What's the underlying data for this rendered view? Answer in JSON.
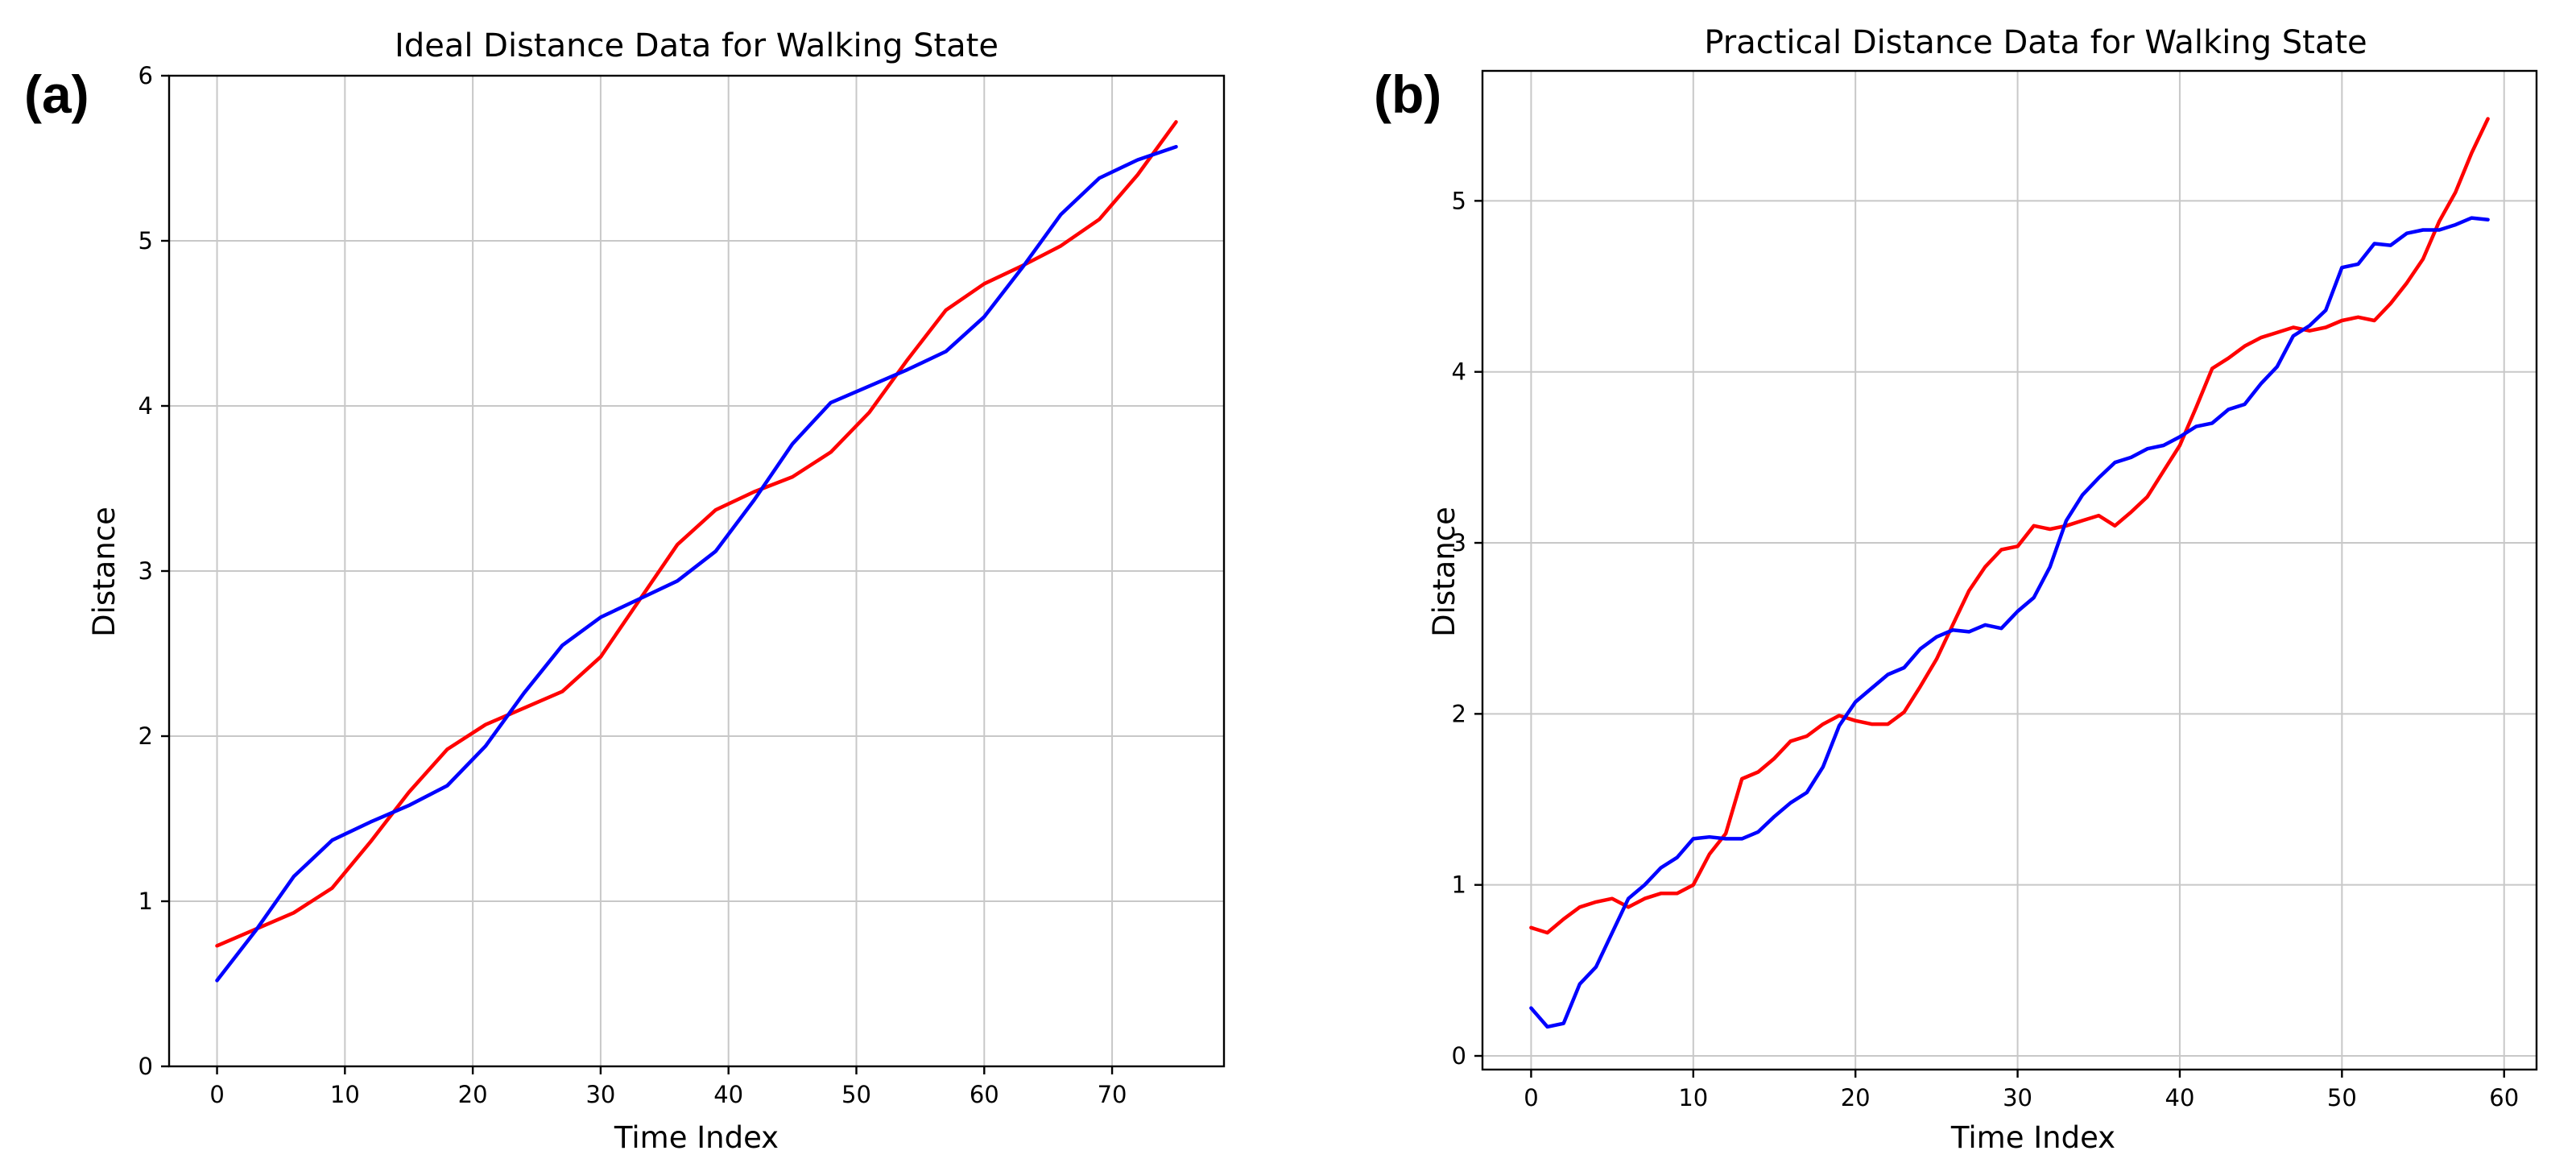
{
  "figure": {
    "panels": [
      "(a)",
      "(b)"
    ]
  },
  "chart_data": [
    {
      "type": "line",
      "panel_label": "(a)",
      "title": "Ideal Distance Data for Walking State",
      "xlabel": "Time Index",
      "ylabel": "Distance",
      "xlim": [
        -3.75,
        78.75
      ],
      "ylim": [
        0,
        6
      ],
      "xticks": [
        0,
        10,
        20,
        30,
        40,
        50,
        60,
        70
      ],
      "yticks": [
        0,
        1,
        2,
        3,
        4,
        5,
        6
      ],
      "grid": true,
      "series": [
        {
          "name": "red",
          "color": "#ff0000",
          "x": [
            0,
            3,
            6,
            9,
            12,
            15,
            18,
            21,
            24,
            27,
            30,
            33,
            36,
            39,
            42,
            45,
            48,
            51,
            54,
            57,
            60,
            63,
            66,
            69,
            72,
            75
          ],
          "values": [
            0.73,
            0.83,
            0.93,
            1.08,
            1.36,
            1.66,
            1.92,
            2.07,
            2.17,
            2.27,
            2.48,
            2.82,
            3.16,
            3.37,
            3.48,
            3.57,
            3.72,
            3.96,
            4.28,
            4.58,
            4.74,
            4.85,
            4.97,
            5.13,
            5.4,
            5.72
          ]
        },
        {
          "name": "blue",
          "color": "#0000ff",
          "x": [
            0,
            3,
            6,
            9,
            12,
            15,
            18,
            21,
            24,
            27,
            30,
            33,
            36,
            39,
            42,
            45,
            48,
            51,
            54,
            57,
            60,
            63,
            66,
            69,
            72,
            75
          ],
          "values": [
            0.52,
            0.82,
            1.15,
            1.37,
            1.48,
            1.58,
            1.7,
            1.94,
            2.26,
            2.55,
            2.72,
            2.83,
            2.94,
            3.12,
            3.43,
            3.77,
            4.02,
            4.12,
            4.22,
            4.33,
            4.54,
            4.84,
            5.16,
            5.38,
            5.49,
            5.57
          ]
        }
      ]
    },
    {
      "type": "line",
      "panel_label": "(b)",
      "title": "Practical Distance Data for Walking State",
      "xlabel": "Time Index",
      "ylabel": "Distance",
      "xlim": [
        -3.0,
        62.0
      ],
      "ylim": [
        -0.08,
        5.76
      ],
      "xticks": [
        0,
        10,
        20,
        30,
        40,
        50,
        60
      ],
      "yticks": [
        0,
        1,
        2,
        3,
        4,
        5
      ],
      "grid": true,
      "series": [
        {
          "name": "red",
          "color": "#ff0000",
          "x": [
            0,
            1,
            2,
            3,
            4,
            5,
            6,
            7,
            8,
            9,
            10,
            11,
            12,
            13,
            14,
            15,
            16,
            17,
            18,
            19,
            20,
            21,
            22,
            23,
            24,
            25,
            26,
            27,
            28,
            29,
            30,
            31,
            32,
            33,
            34,
            35,
            36,
            37,
            38,
            39,
            40,
            41,
            42,
            43,
            44,
            45,
            46,
            47,
            48,
            49,
            50,
            51,
            52,
            53,
            54,
            55,
            56,
            57,
            58,
            59
          ],
          "values": [
            0.75,
            0.72,
            0.8,
            0.87,
            0.9,
            0.92,
            0.87,
            0.92,
            0.95,
            0.95,
            1.0,
            1.18,
            1.3,
            1.62,
            1.66,
            1.74,
            1.84,
            1.87,
            1.94,
            1.99,
            1.96,
            1.94,
            1.94,
            2.01,
            2.16,
            2.32,
            2.52,
            2.72,
            2.86,
            2.96,
            2.98,
            3.1,
            3.08,
            3.1,
            3.13,
            3.16,
            3.1,
            3.18,
            3.27,
            3.42,
            3.57,
            3.79,
            4.02,
            4.08,
            4.15,
            4.2,
            4.23,
            4.26,
            4.24,
            4.26,
            4.3,
            4.32,
            4.3,
            4.4,
            4.52,
            4.66,
            4.88,
            5.05,
            5.28,
            5.48
          ]
        },
        {
          "name": "blue",
          "color": "#0000ff",
          "x": [
            0,
            1,
            2,
            3,
            4,
            5,
            6,
            7,
            8,
            9,
            10,
            11,
            12,
            13,
            14,
            15,
            16,
            17,
            18,
            19,
            20,
            21,
            22,
            23,
            24,
            25,
            26,
            27,
            28,
            29,
            30,
            31,
            32,
            33,
            34,
            35,
            36,
            37,
            38,
            39,
            40,
            41,
            42,
            43,
            44,
            45,
            46,
            47,
            48,
            49,
            50,
            51,
            52,
            53,
            54,
            55,
            56,
            57,
            58,
            59
          ],
          "values": [
            0.28,
            0.17,
            0.19,
            0.42,
            0.52,
            0.72,
            0.92,
            1.0,
            1.1,
            1.16,
            1.27,
            1.28,
            1.27,
            1.27,
            1.31,
            1.4,
            1.48,
            1.54,
            1.69,
            1.93,
            2.07,
            2.15,
            2.23,
            2.27,
            2.38,
            2.45,
            2.49,
            2.48,
            2.52,
            2.5,
            2.6,
            2.68,
            2.86,
            3.13,
            3.28,
            3.38,
            3.47,
            3.5,
            3.55,
            3.57,
            3.62,
            3.68,
            3.7,
            3.78,
            3.81,
            3.93,
            4.03,
            4.21,
            4.27,
            4.36,
            4.61,
            4.63,
            4.75,
            4.74,
            4.81,
            4.83,
            4.83,
            4.86,
            4.9,
            4.89
          ]
        }
      ]
    }
  ]
}
